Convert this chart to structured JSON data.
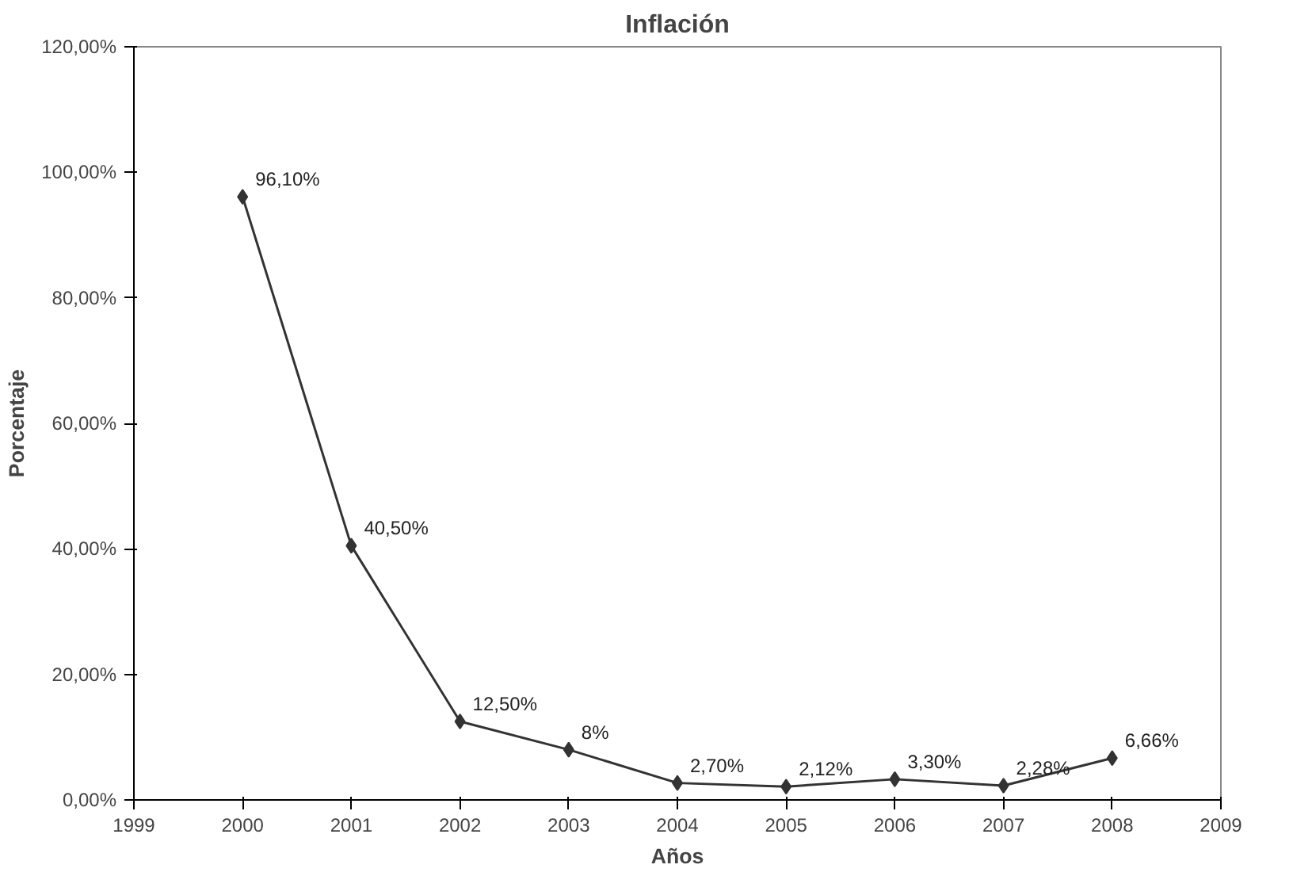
{
  "chart_data": {
    "type": "line",
    "title": "Inflación",
    "xlabel": "Años",
    "ylabel": "Porcentaje",
    "x": [
      2000,
      2001,
      2002,
      2003,
      2004,
      2005,
      2006,
      2007,
      2008
    ],
    "series": [
      {
        "color": "#333333",
        "values": [
          96.1,
          40.5,
          12.5,
          8,
          2.7,
          2.12,
          3.3,
          2.28,
          6.66
        ],
        "value_labels": [
          "96,10%",
          "40,50%",
          "12,50%",
          "8%",
          "2,70%",
          "2,12%",
          "3,30%",
          "2,28%",
          "6,66%"
        ]
      }
    ],
    "xlim": [
      1999,
      2009
    ],
    "xticks": [
      1999,
      2000,
      2001,
      2002,
      2003,
      2004,
      2005,
      2006,
      2007,
      2008,
      2009
    ],
    "ylim": [
      0,
      120
    ],
    "yticks": [
      {
        "value": 0,
        "label": "0,00%"
      },
      {
        "value": 20,
        "label": "20,00%"
      },
      {
        "value": 40,
        "label": "40,00%"
      },
      {
        "value": 60,
        "label": "60,00%"
      },
      {
        "value": 80,
        "label": "80,00%"
      },
      {
        "value": 100,
        "label": "100,00%"
      },
      {
        "value": 120,
        "label": "120,00%"
      }
    ],
    "grid": false,
    "marker": "diamond",
    "line_style": "solid"
  }
}
